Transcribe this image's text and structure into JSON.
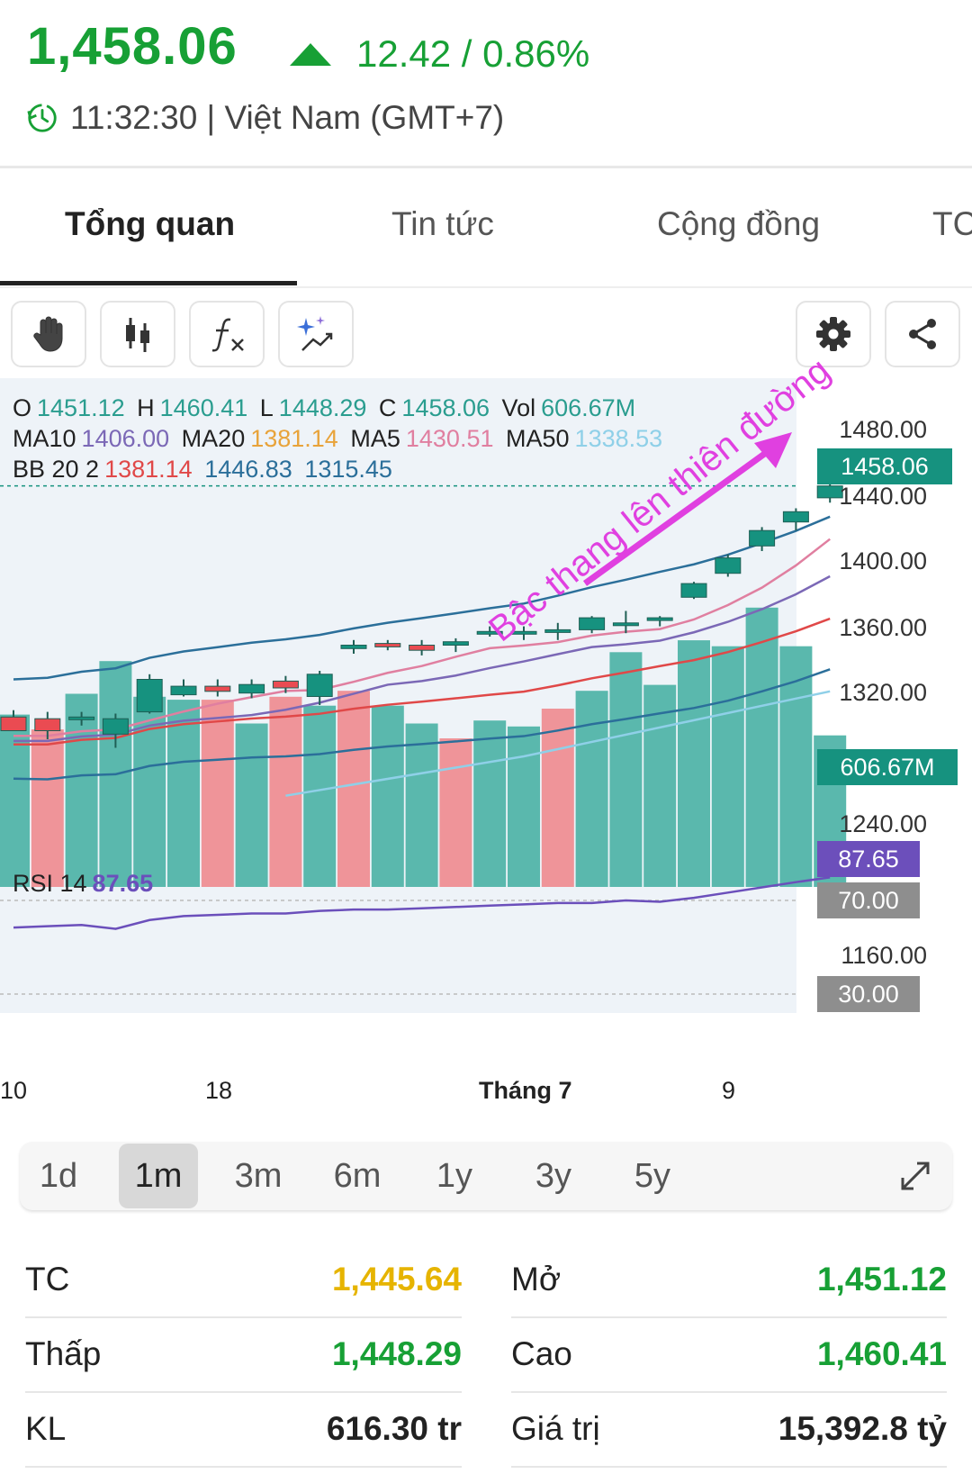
{
  "header": {
    "price": "1,458.06",
    "change": "12.42 / 0.86%",
    "time": "11:32:30 | Việt Nam (GMT+7)",
    "colors": {
      "up": "#17a035"
    }
  },
  "tabs": [
    {
      "label": "Tổng quan",
      "active": true
    },
    {
      "label": "Tin tức",
      "active": false
    },
    {
      "label": "Cộng đồng",
      "active": false
    },
    {
      "label": "TC",
      "active": false
    }
  ],
  "toolbar": {
    "icons": [
      "hand-icon",
      "candlestick-icon",
      "function-icon",
      "sparkle-icon",
      "gear-icon",
      "share-icon"
    ]
  },
  "legend": {
    "o_label": "O",
    "o": "1451.12",
    "h_label": "H",
    "h": "1460.41",
    "l_label": "L",
    "l": "1448.29",
    "c_label": "C",
    "c": "1458.06",
    "vol_label": "Vol",
    "vol": "606.67M",
    "ma10_label": "MA10",
    "ma10": "1406.00",
    "ma20_label": "MA20",
    "ma20": "1381.14",
    "ma5_label": "MA5",
    "ma5": "1430.51",
    "ma50_label": "MA50",
    "ma50": "1338.53",
    "bb_label": "BB 20 2",
    "bb_mid": "1381.14",
    "bb_up": "1446.83",
    "bb_low": "1315.45",
    "rsi_label": "RSI 14",
    "rsi": "87.65"
  },
  "annotation": "Bậc thang lên thiên đường",
  "price_axis": [
    "1480.00",
    "1440.00",
    "1400.00",
    "1360.00",
    "1320.00",
    "1240.00",
    "1160.00"
  ],
  "tags": {
    "last_price": "1458.06",
    "volume": "606.67M",
    "rsi": "87.65",
    "rsi_high": "70.00",
    "rsi_low": "30.00"
  },
  "x_axis": [
    "10",
    "18",
    "Tháng 7",
    "9"
  ],
  "periods": [
    {
      "label": "1d",
      "active": false
    },
    {
      "label": "1m",
      "active": true
    },
    {
      "label": "3m",
      "active": false
    },
    {
      "label": "6m",
      "active": false
    },
    {
      "label": "1y",
      "active": false
    },
    {
      "label": "3y",
      "active": false
    },
    {
      "label": "5y",
      "active": false
    }
  ],
  "stats": {
    "tc_label": "TC",
    "tc": "1,445.64",
    "mo_label": "Mở",
    "mo": "1,451.12",
    "thap_label": "Thấp",
    "thap": "1,448.29",
    "cao_label": "Cao",
    "cao": "1,460.41",
    "kl_label": "KL",
    "kl": "616.30 tr",
    "giatri_label": "Giá trị",
    "giatri": "15,392.8 tỷ",
    "colors": {
      "ref": "#e6b400",
      "up": "#17a035",
      "neutral": "#222222"
    }
  },
  "chart_data": {
    "type": "candlestick",
    "price_range": [
      1160,
      1480
    ],
    "candles": [
      {
        "o": 1323,
        "h": 1327,
        "l": 1316,
        "c": 1315
      },
      {
        "o": 1322,
        "h": 1326,
        "l": 1310,
        "c": 1315
      },
      {
        "o": 1322,
        "h": 1326,
        "l": 1318,
        "c": 1323
      },
      {
        "o": 1313,
        "h": 1325,
        "l": 1305,
        "c": 1322
      },
      {
        "o": 1326,
        "h": 1348,
        "l": 1325,
        "c": 1345
      },
      {
        "o": 1336,
        "h": 1345,
        "l": 1335,
        "c": 1341
      },
      {
        "o": 1341,
        "h": 1345,
        "l": 1335,
        "c": 1338
      },
      {
        "o": 1337,
        "h": 1345,
        "l": 1334,
        "c": 1342
      },
      {
        "o": 1344,
        "h": 1347,
        "l": 1337,
        "c": 1340
      },
      {
        "o": 1335,
        "h": 1350,
        "l": 1330,
        "c": 1348
      },
      {
        "o": 1363,
        "h": 1368,
        "l": 1360,
        "c": 1365
      },
      {
        "o": 1366,
        "h": 1368,
        "l": 1362,
        "c": 1364
      },
      {
        "o": 1365,
        "h": 1368,
        "l": 1359,
        "c": 1362
      },
      {
        "o": 1365,
        "h": 1369,
        "l": 1361,
        "c": 1367
      },
      {
        "o": 1373,
        "h": 1376,
        "l": 1370,
        "c": 1373
      },
      {
        "o": 1373,
        "h": 1376,
        "l": 1368,
        "c": 1373
      },
      {
        "o": 1373,
        "h": 1378,
        "l": 1368,
        "c": 1374
      },
      {
        "o": 1374,
        "h": 1382,
        "l": 1372,
        "c": 1381
      },
      {
        "o": 1378,
        "h": 1385,
        "l": 1372,
        "c": 1378
      },
      {
        "o": 1380,
        "h": 1382,
        "l": 1376,
        "c": 1381
      },
      {
        "o": 1393,
        "h": 1402,
        "l": 1392,
        "c": 1401
      },
      {
        "o": 1407,
        "h": 1418,
        "l": 1405,
        "c": 1416
      },
      {
        "o": 1423,
        "h": 1434,
        "l": 1420,
        "c": 1432
      },
      {
        "o": 1437,
        "h": 1445,
        "l": 1432,
        "c": 1443
      },
      {
        "o": 1451.12,
        "h": 1460.41,
        "l": 1448.29,
        "c": 1458.06
      }
    ],
    "volume_up": [
      true,
      false,
      true,
      true,
      true,
      true,
      false,
      true,
      false,
      true,
      false,
      true,
      true,
      false,
      true,
      true,
      false,
      true,
      true,
      true,
      true,
      true,
      true,
      true,
      true
    ],
    "volume": [
      58,
      53,
      65,
      76,
      64,
      63,
      63,
      55,
      64,
      61,
      66,
      61,
      55,
      50,
      56,
      54,
      60,
      66,
      79,
      68,
      83,
      81,
      94,
      81,
      51
    ],
    "rsi": [
      52,
      53,
      54,
      51,
      55,
      58,
      59,
      60,
      60,
      62,
      63,
      63,
      64,
      65,
      66,
      67,
      68,
      68,
      70,
      69,
      72,
      76,
      80,
      84,
      87.65
    ],
    "rsi_levels": [
      70,
      30
    ]
  }
}
